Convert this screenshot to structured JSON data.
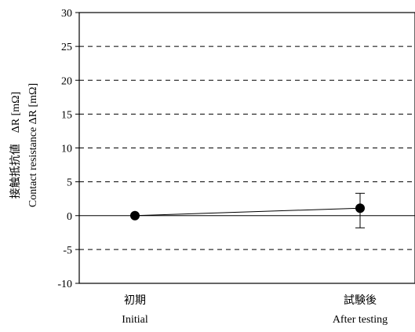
{
  "chart_data": {
    "type": "scatter",
    "title": "",
    "categories": [
      {
        "ja": "初期",
        "en": "Initial"
      },
      {
        "ja": "試験後",
        "en": "After testing"
      }
    ],
    "ylabel_ja": "接触抵抗値　ΔR [mΩ]",
    "ylabel_en": "Contact resistance ΔR [mΩ]",
    "ylim": [
      -10,
      30
    ],
    "yticks": [
      -10,
      -5,
      0,
      5,
      10,
      15,
      20,
      25,
      30
    ],
    "grid": "dashed horizontal",
    "legend": "none",
    "series": [
      {
        "values": [
          0,
          1.1
        ],
        "error_low": [
          0,
          -1.8
        ],
        "error_high": [
          0,
          3.3
        ]
      }
    ]
  }
}
